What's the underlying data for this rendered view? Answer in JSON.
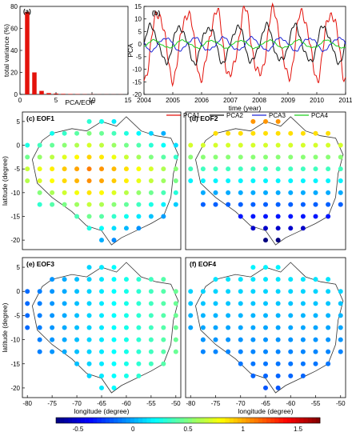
{
  "colors": {
    "pca1": "#e3120b",
    "pca2": "#111111",
    "pca3": "#1f26d6",
    "pca4": "#1ed11e",
    "bar": "#e3120b",
    "outline": "#333333"
  },
  "chart_data": [
    {
      "id": "a",
      "type": "bar",
      "panel_label": "(a)",
      "xlabel": "PCA/EOF",
      "ylabel": "total variance (%)",
      "xlim": [
        0,
        15
      ],
      "ylim": [
        0,
        80
      ],
      "xticks": [
        "0",
        "5",
        "10",
        "15"
      ],
      "yticks": [
        "0",
        "20",
        "40",
        "60",
        "80"
      ],
      "categories": [
        1,
        2,
        3,
        4,
        5,
        6,
        7,
        8,
        9,
        10,
        11,
        12,
        13,
        14
      ],
      "values": [
        75,
        20,
        3.2,
        1.2,
        0.8,
        0.5,
        0.4,
        0.3,
        0.2,
        0.2,
        0.1,
        0.1,
        0.1,
        0.1
      ]
    },
    {
      "id": "b",
      "type": "line",
      "panel_label": "(b)",
      "xlabel": "time (year)",
      "ylabel": "PCA",
      "xlim": [
        2004,
        2011
      ],
      "ylim": [
        -20,
        15
      ],
      "xticks": [
        "2004",
        "2005",
        "2006",
        "2007",
        "2008",
        "2009",
        "2010",
        "2011"
      ],
      "yticks": [
        "15",
        "10",
        "5",
        "0",
        "-5",
        "-10",
        "-15",
        "-20"
      ],
      "legend": [
        "PCA1",
        "PCA2",
        "PCA3",
        "PCA4"
      ],
      "series": [
        {
          "name": "PCA1",
          "amplitude": 13,
          "phase": 0.25,
          "trend": 0.0
        },
        {
          "name": "PCA2",
          "amplitude": 7,
          "phase": 0.0,
          "trend": 0.0
        },
        {
          "name": "PCA3",
          "amplitude": 2.5,
          "phase": 0.5,
          "trend": 0.0
        },
        {
          "name": "PCA4",
          "amplitude": 1.5,
          "phase": 0.1,
          "trend": 0.0
        }
      ]
    },
    {
      "id": "maps",
      "type": "scatter",
      "xlabel": "longitude (degree)",
      "ylabel": "latitude (degree)",
      "xlim": [
        -81,
        -49
      ],
      "ylim": [
        -22,
        7
      ],
      "xticks": [
        "-80",
        "-75",
        "-70",
        "-65",
        "-60",
        "-55",
        "-50"
      ],
      "yticks": [
        "5",
        "0",
        "-5",
        "-10",
        "-15",
        "-20"
      ],
      "colorbar": {
        "range": [
          -0.7,
          1.7
        ],
        "ticks": [
          "-0.5",
          "0",
          "0.5",
          "1",
          "1.5"
        ]
      },
      "panels": [
        {
          "label": "(c) EOF1"
        },
        {
          "label": "(d) EOF2"
        },
        {
          "label": "(e) EOF3"
        },
        {
          "label": "(f) EOF4"
        }
      ]
    }
  ]
}
